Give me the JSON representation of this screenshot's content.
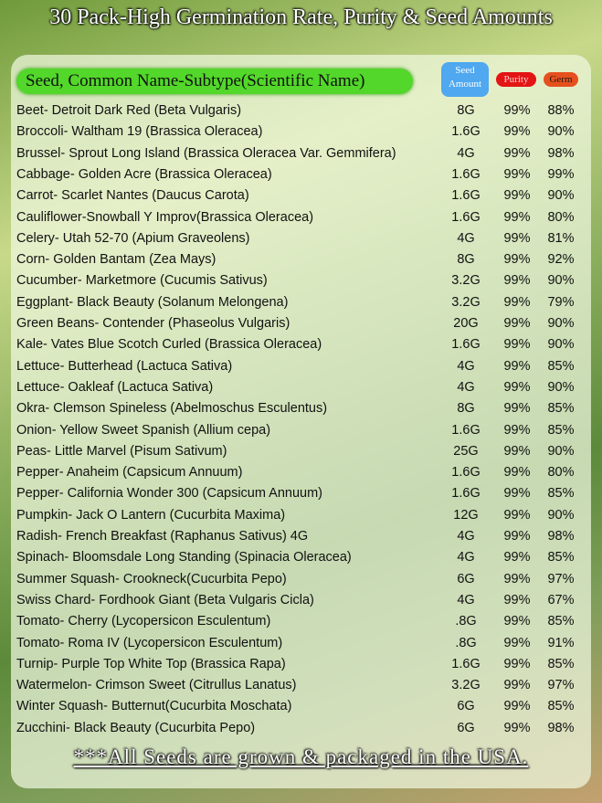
{
  "header": {
    "title": "30 Pack-High Germination Rate, Purity & Seed Amounts"
  },
  "table": {
    "columns": {
      "name": "Seed, Common Name-Subtype(Scientific Name)",
      "amount": [
        "Seed",
        "Amount"
      ],
      "purity": "Purity",
      "germ": "Germ"
    },
    "rows": [
      [
        "Beet- Detroit Dark Red (Beta Vulgaris)",
        "8G",
        "99%",
        "88%"
      ],
      [
        "Broccoli- Waltham 19 (Brassica Oleracea)",
        "1.6G",
        "99%",
        "90%"
      ],
      [
        "Brussel- Sprout Long Island (Brassica Oleracea Var. Gemmifera)",
        "4G",
        "99%",
        "98%"
      ],
      [
        "Cabbage- Golden Acre (Brassica Oleracea)",
        "1.6G",
        "99%",
        "99%"
      ],
      [
        "Carrot- Scarlet Nantes (Daucus Carota)",
        "1.6G",
        "99%",
        "90%"
      ],
      [
        "Cauliflower-Snowball Y Improv(Brassica Oleracea)",
        "1.6G",
        "99%",
        "80%"
      ],
      [
        "Celery- Utah 52-70 (Apium Graveolens)",
        "4G",
        "99%",
        "81%"
      ],
      [
        "Corn- Golden Bantam (Zea Mays)",
        "8G",
        "99%",
        "92%"
      ],
      [
        "Cucumber- Marketmore (Cucumis Sativus)",
        "3.2G",
        "99%",
        "90%"
      ],
      [
        "Eggplant- Black Beauty (Solanum Melongena)",
        "3.2G",
        "99%",
        "79%"
      ],
      [
        "Green Beans- Contender (Phaseolus Vulgaris)",
        "20G",
        "99%",
        "90%"
      ],
      [
        "Kale- Vates Blue Scotch Curled (Brassica Oleracea)",
        "1.6G",
        "99%",
        "90%"
      ],
      [
        "Lettuce- Butterhead (Lactuca Sativa)",
        "4G",
        "99%",
        "85%"
      ],
      [
        "Lettuce- Oakleaf (Lactuca Sativa)",
        "4G",
        "99%",
        "90%"
      ],
      [
        "Okra- Clemson Spineless (Abelmoschus Esculentus)",
        "8G",
        "99%",
        "85%"
      ],
      [
        "Onion- Yellow Sweet Spanish (Allium cepa)",
        "1.6G",
        "99%",
        "85%"
      ],
      [
        "Peas- Little Marvel (Pisum Sativum)",
        "25G",
        "99%",
        "90%"
      ],
      [
        "Pepper- Anaheim (Capsicum Annuum)",
        "1.6G",
        "99%",
        "80%"
      ],
      [
        "Pepper- California Wonder 300 (Capsicum Annuum)",
        "1.6G",
        "99%",
        "85%"
      ],
      [
        "Pumpkin- Jack O Lantern (Cucurbita Maxima)",
        "12G",
        "99%",
        "90%"
      ],
      [
        "Radish- French Breakfast (Raphanus Sativus) 4G",
        "4G",
        "99%",
        "98%"
      ],
      [
        "Spinach- Bloomsdale Long Standing (Spinacia Oleracea)",
        "4G",
        "99%",
        "85%"
      ],
      [
        "Summer Squash- Crookneck(Cucurbita Pepo)",
        "6G",
        "99%",
        "97%"
      ],
      [
        "Swiss Chard- Fordhook Giant (Beta Vulgaris Cicla)",
        "4G",
        "99%",
        "67%"
      ],
      [
        "Tomato- Cherry (Lycopersicon Esculentum)",
        ".8G",
        "99%",
        "85%"
      ],
      [
        "Tomato- Roma IV (Lycopersicon Esculentum)",
        ".8G",
        "99%",
        "91%"
      ],
      [
        "Turnip- Purple Top White Top (Brassica Rapa)",
        "1.6G",
        "99%",
        "85%"
      ],
      [
        "Watermelon- Crimson Sweet (Citrullus Lanatus)",
        "3.2G",
        "99%",
        "97%"
      ],
      [
        "Winter Squash- Butternut(Cucurbita Moschata)",
        "6G",
        "99%",
        "85%"
      ],
      [
        "Zucchini- Black Beauty (Cucurbita Pepo)",
        "6G",
        "99%",
        "98%"
      ]
    ]
  },
  "footer": {
    "note": "***All Seeds are grown & packaged in the USA."
  }
}
